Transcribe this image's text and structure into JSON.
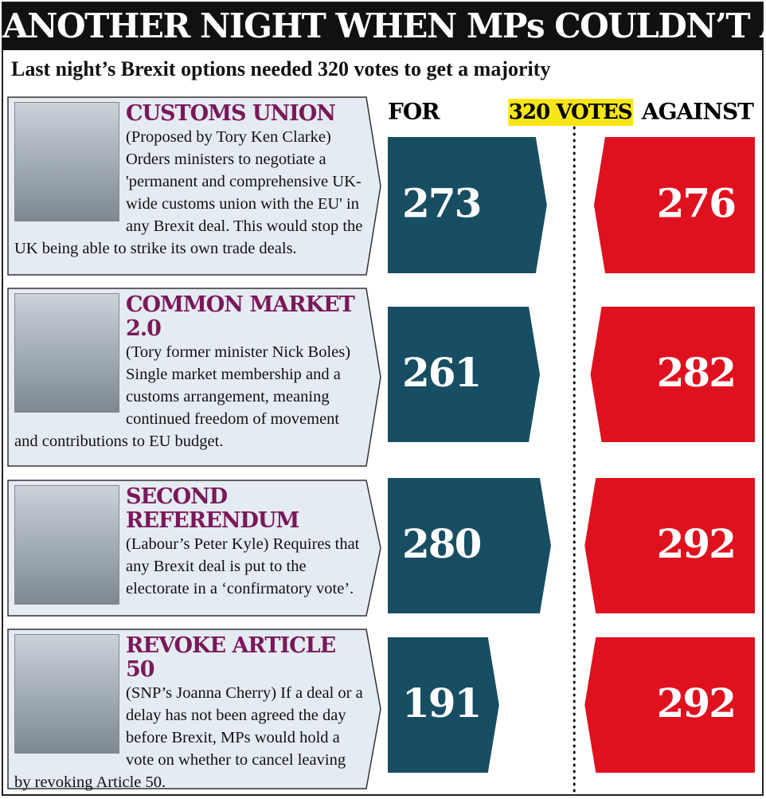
{
  "chart_data": {
    "type": "bar",
    "title": "ANOTHER NIGHT WHEN MPs COULDN’T AGREE",
    "subtitle": "Last night’s Brexit options needed 320 votes to get a majority",
    "threshold": {
      "value": 320,
      "label": "320 VOTES"
    },
    "categories": [
      "CUSTOMS UNION",
      "COMMON MARKET 2.0",
      "SECOND REFERENDUM",
      "REVOKE ARTICLE 50"
    ],
    "descriptions": [
      "(Proposed by Tory Ken Clarke) Orders ministers to negotiate a 'permanent and comprehensive UK-wide customs union with the EU' in any Brexit deal. This would stop the UK being able to strike its own trade deals.",
      "(Tory former minister Nick Boles) Single market membership and a customs arrangement, meaning continued freedom of movement and contributions to EU budget.",
      "(Labour’s Peter Kyle) Requires that any Brexit deal is put to the electorate in a ‘confirmatory vote’.",
      "(SNP’s Joanna Cherry) If a deal or a delay has not been agreed the day before Brexit, MPs would hold a vote on whether to cancel leaving by revoking Article 50."
    ],
    "series": [
      {
        "name": "FOR",
        "color": "#184e63",
        "values": [
          273,
          261,
          280,
          191
        ]
      },
      {
        "name": "AGAINST",
        "color": "#e0111f",
        "values": [
          276,
          282,
          292,
          292
        ]
      }
    ]
  }
}
